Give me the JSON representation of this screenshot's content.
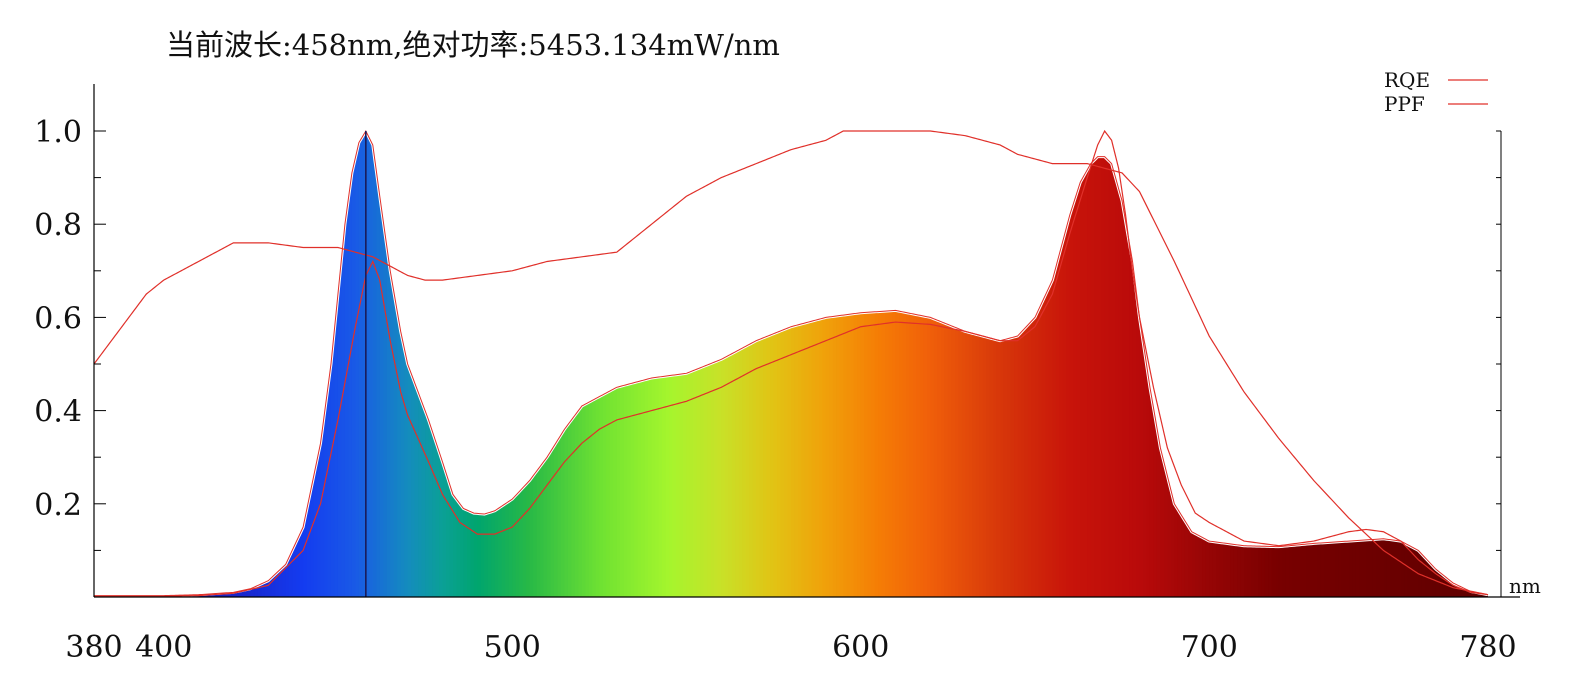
{
  "readout": {
    "title": "当前波长:458nm,绝对功率:5453.134mW/nm"
  },
  "colors": {
    "curve": "#e0302a",
    "axis": "#000000",
    "marker": "#1a1a5a"
  },
  "chart_data": {
    "type": "area",
    "title": "当前波长:458nm,绝对功率:5453.134mW/nm",
    "xlabel": "",
    "x_unit_label": "nm",
    "ylabel": "",
    "xlim": [
      380,
      780
    ],
    "ylim": [
      0,
      1.0
    ],
    "x_ticks": [
      380,
      400,
      500,
      600,
      700,
      780
    ],
    "y_ticks": [
      0.2,
      0.4,
      0.6,
      0.8,
      1.0
    ],
    "y_tick_labels": [
      "0.2",
      "0.4",
      "0.6",
      "0.8",
      "1.0"
    ],
    "grid": false,
    "legend_position": "top-right",
    "marker_wavelength": 458,
    "series": [
      {
        "name": "",
        "role": "spectrum",
        "x": [
          380,
          390,
          400,
          410,
          420,
          425,
          430,
          435,
          440,
          445,
          448,
          450,
          452,
          454,
          456,
          458,
          460,
          462,
          465,
          468,
          470,
          473,
          476,
          480,
          483,
          486,
          489,
          492,
          495,
          498,
          500,
          505,
          510,
          515,
          520,
          525,
          530,
          540,
          550,
          560,
          570,
          580,
          590,
          600,
          610,
          620,
          630,
          640,
          645,
          650,
          655,
          660,
          663,
          666,
          668,
          670,
          672,
          675,
          678,
          680,
          683,
          686,
          690,
          695,
          700,
          710,
          720,
          730,
          740,
          750,
          755,
          760,
          765,
          770,
          775,
          780
        ],
        "y": [
          0.003,
          0.003,
          0.003,
          0.005,
          0.01,
          0.018,
          0.035,
          0.07,
          0.15,
          0.33,
          0.5,
          0.65,
          0.8,
          0.91,
          0.975,
          1.0,
          0.97,
          0.86,
          0.7,
          0.57,
          0.5,
          0.44,
          0.38,
          0.29,
          0.22,
          0.19,
          0.18,
          0.178,
          0.185,
          0.2,
          0.21,
          0.25,
          0.3,
          0.36,
          0.41,
          0.43,
          0.45,
          0.47,
          0.48,
          0.51,
          0.55,
          0.58,
          0.6,
          0.61,
          0.615,
          0.6,
          0.57,
          0.55,
          0.56,
          0.6,
          0.68,
          0.82,
          0.89,
          0.93,
          0.945,
          0.945,
          0.93,
          0.85,
          0.72,
          0.6,
          0.45,
          0.32,
          0.2,
          0.14,
          0.12,
          0.11,
          0.108,
          0.115,
          0.12,
          0.125,
          0.12,
          0.1,
          0.06,
          0.03,
          0.012,
          0.005
        ]
      },
      {
        "name": "RQE",
        "x": [
          380,
          385,
          390,
          395,
          400,
          405,
          410,
          415,
          420,
          425,
          430,
          440,
          450,
          460,
          465,
          470,
          475,
          480,
          490,
          500,
          510,
          520,
          530,
          535,
          540,
          545,
          550,
          560,
          570,
          580,
          590,
          595,
          600,
          610,
          620,
          630,
          640,
          645,
          650,
          655,
          660,
          665,
          670,
          675,
          680,
          690,
          700,
          710,
          720,
          730,
          740,
          750,
          760,
          770,
          780
        ],
        "y": [
          0.5,
          0.55,
          0.6,
          0.65,
          0.68,
          0.7,
          0.72,
          0.74,
          0.76,
          0.76,
          0.76,
          0.75,
          0.75,
          0.73,
          0.71,
          0.69,
          0.68,
          0.68,
          0.69,
          0.7,
          0.72,
          0.73,
          0.74,
          0.77,
          0.8,
          0.83,
          0.86,
          0.9,
          0.93,
          0.96,
          0.98,
          1.0,
          1.0,
          1.0,
          1.0,
          0.99,
          0.97,
          0.95,
          0.94,
          0.93,
          0.93,
          0.93,
          0.92,
          0.91,
          0.87,
          0.72,
          0.56,
          0.44,
          0.34,
          0.25,
          0.17,
          0.1,
          0.05,
          0.02,
          0.005
        ]
      },
      {
        "name": "PPF",
        "x": [
          380,
          390,
          400,
          410,
          420,
          430,
          440,
          445,
          450,
          455,
          458,
          460,
          462,
          465,
          468,
          470,
          473,
          476,
          480,
          485,
          490,
          495,
          500,
          505,
          510,
          515,
          520,
          525,
          530,
          540,
          550,
          560,
          570,
          580,
          590,
          600,
          610,
          620,
          630,
          640,
          645,
          650,
          655,
          660,
          665,
          668,
          670,
          672,
          674,
          676,
          678,
          680,
          684,
          688,
          692,
          696,
          700,
          710,
          720,
          730,
          740,
          745,
          750,
          755,
          760,
          765,
          770,
          775,
          780
        ],
        "y": [
          0.002,
          0.002,
          0.002,
          0.003,
          0.008,
          0.025,
          0.1,
          0.2,
          0.38,
          0.58,
          0.69,
          0.72,
          0.68,
          0.55,
          0.44,
          0.39,
          0.34,
          0.29,
          0.22,
          0.16,
          0.135,
          0.135,
          0.15,
          0.19,
          0.24,
          0.29,
          0.33,
          0.36,
          0.38,
          0.4,
          0.42,
          0.45,
          0.49,
          0.52,
          0.55,
          0.58,
          0.59,
          0.585,
          0.57,
          0.55,
          0.55,
          0.58,
          0.65,
          0.78,
          0.9,
          0.97,
          1.0,
          0.98,
          0.92,
          0.82,
          0.7,
          0.6,
          0.45,
          0.32,
          0.24,
          0.18,
          0.16,
          0.12,
          0.11,
          0.12,
          0.14,
          0.145,
          0.14,
          0.12,
          0.08,
          0.05,
          0.025,
          0.01,
          0.005
        ]
      }
    ]
  }
}
